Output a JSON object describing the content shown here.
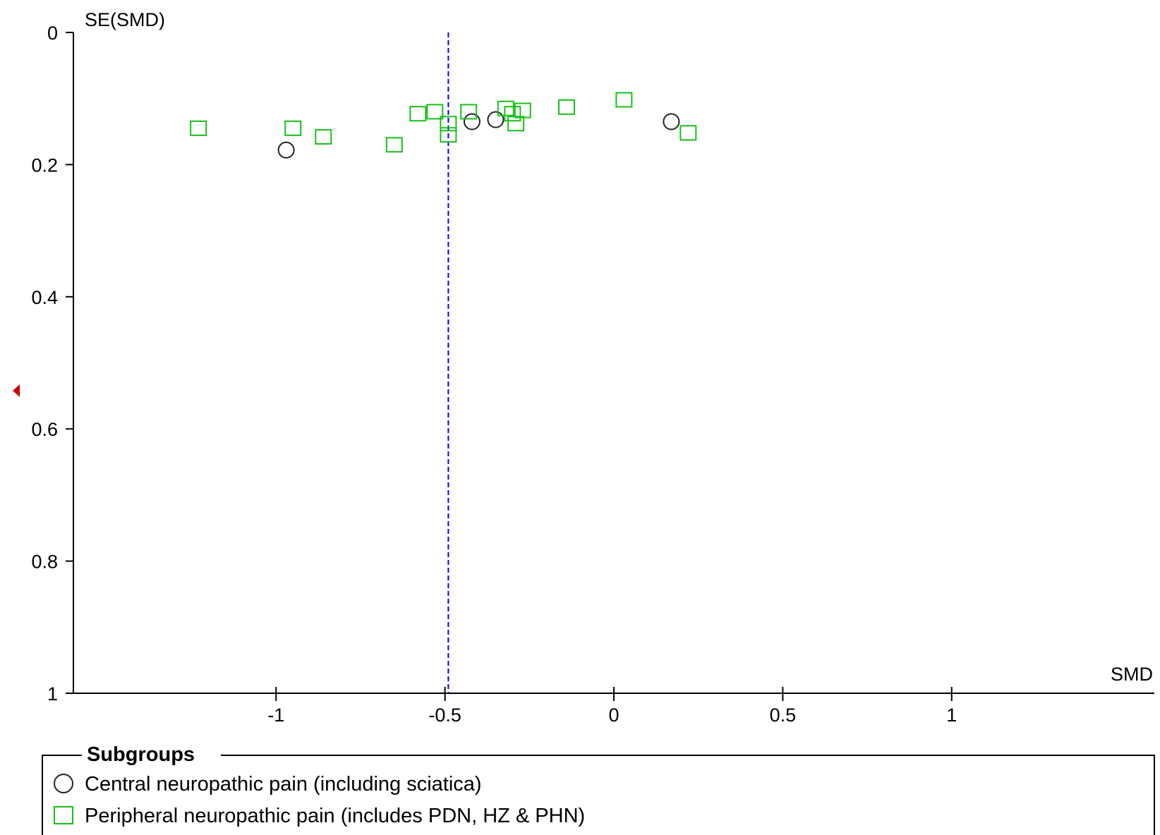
{
  "chart_data": {
    "type": "scatter",
    "subtype": "funnel-plot",
    "title": "",
    "xlabel": "SMD",
    "ylabel": "SE(SMD)",
    "xlim": [
      -1.6,
      1.6
    ],
    "ylim": [
      0,
      1
    ],
    "y_inverted": true,
    "x_ticks": [
      -1,
      -0.5,
      0,
      0.5,
      1
    ],
    "x_tick_labels": [
      "-1",
      "-0.5",
      "0",
      "0.5",
      "1"
    ],
    "y_ticks": [
      0,
      0.2,
      0.4,
      0.6,
      0.8,
      1
    ],
    "y_tick_labels": [
      "0",
      "0.2",
      "0.4",
      "0.6",
      "0.8",
      "1"
    ],
    "pooled_estimate": -0.49,
    "pooled_line_color": "#1515d8",
    "grid": false,
    "series": [
      {
        "name": "Central neuropathic pain (including sciatica)",
        "marker": "circle",
        "color": "#222222",
        "points": [
          {
            "x": -0.97,
            "y": 0.178
          },
          {
            "x": -0.42,
            "y": 0.135
          },
          {
            "x": -0.35,
            "y": 0.132
          },
          {
            "x": 0.17,
            "y": 0.135
          }
        ]
      },
      {
        "name": "Peripheral neuropathic pain (includes PDN, HZ & PHN)",
        "marker": "square",
        "color": "#17c117",
        "points": [
          {
            "x": -1.23,
            "y": 0.145
          },
          {
            "x": -0.95,
            "y": 0.145
          },
          {
            "x": -0.86,
            "y": 0.158
          },
          {
            "x": -0.65,
            "y": 0.17
          },
          {
            "x": -0.58,
            "y": 0.123
          },
          {
            "x": -0.53,
            "y": 0.12
          },
          {
            "x": -0.49,
            "y": 0.138
          },
          {
            "x": -0.49,
            "y": 0.155
          },
          {
            "x": -0.43,
            "y": 0.12
          },
          {
            "x": -0.32,
            "y": 0.115
          },
          {
            "x": -0.3,
            "y": 0.123
          },
          {
            "x": -0.29,
            "y": 0.138
          },
          {
            "x": -0.27,
            "y": 0.118
          },
          {
            "x": -0.14,
            "y": 0.113
          },
          {
            "x": 0.03,
            "y": 0.102
          },
          {
            "x": 0.22,
            "y": 0.152
          }
        ]
      }
    ],
    "legend": {
      "title": "Subgroups",
      "position": "bottom"
    }
  },
  "side_marker": {
    "icon": "triangle-left-icon",
    "color": "#cc0000"
  }
}
